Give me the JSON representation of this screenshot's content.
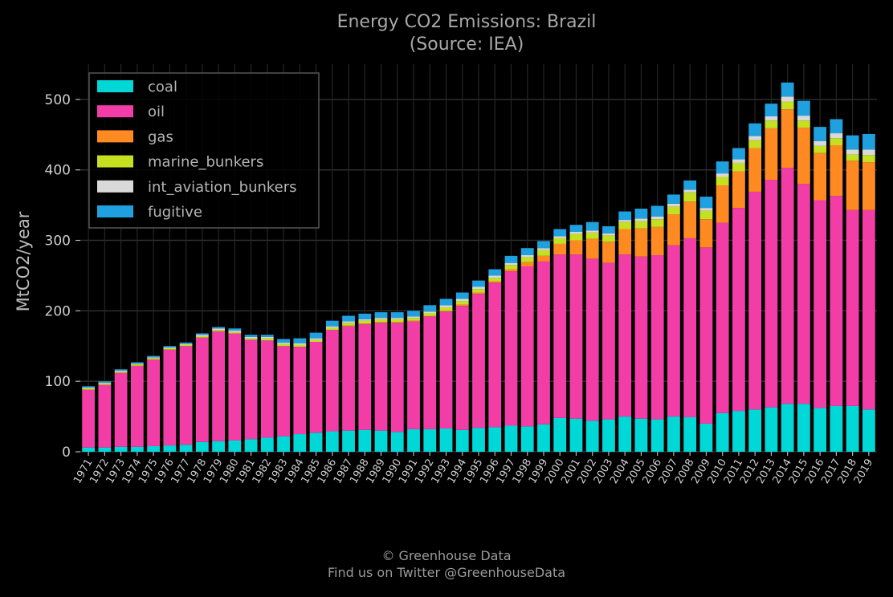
{
  "chart_data": {
    "type": "bar",
    "stacked": true,
    "title": "Energy CO2 Emissions: Brazil",
    "subtitle": "(Source: IEA)",
    "xlabel": "",
    "ylabel": "MtCO2/year",
    "ylim": [
      0,
      550
    ],
    "yticks": [
      0,
      100,
      200,
      300,
      400,
      500
    ],
    "grid": true,
    "legend_position": "top-left",
    "categories": [
      "1971",
      "1972",
      "1973",
      "1974",
      "1975",
      "1976",
      "1977",
      "1978",
      "1979",
      "1980",
      "1981",
      "1982",
      "1983",
      "1984",
      "1985",
      "1986",
      "1987",
      "1988",
      "1989",
      "1990",
      "1991",
      "1992",
      "1993",
      "1994",
      "1995",
      "1996",
      "1997",
      "1998",
      "1999",
      "2000",
      "2001",
      "2002",
      "2003",
      "2004",
      "2005",
      "2006",
      "2007",
      "2008",
      "2009",
      "2010",
      "2011",
      "2012",
      "2013",
      "2014",
      "2015",
      "2016",
      "2017",
      "2018",
      "2019"
    ],
    "series": [
      {
        "name": "coal",
        "color": "#00d7d7",
        "values": [
          6,
          6,
          7,
          7,
          8,
          9,
          10,
          14,
          15,
          16,
          18,
          20,
          22,
          25,
          27,
          29,
          30,
          31,
          30,
          28,
          32,
          32,
          33,
          31,
          34,
          35,
          37,
          36,
          39,
          48,
          47,
          44,
          46,
          50,
          47,
          46,
          50,
          49,
          40,
          55,
          58,
          60,
          63,
          68,
          68,
          62,
          65,
          65,
          60
        ]
      },
      {
        "name": "oil",
        "color": "#f23da7",
        "values": [
          82,
          89,
          105,
          115,
          123,
          136,
          140,
          148,
          156,
          152,
          141,
          138,
          128,
          124,
          129,
          144,
          148,
          150,
          153,
          155,
          153,
          160,
          166,
          176,
          190,
          205,
          219,
          227,
          231,
          232,
          233,
          230,
          222,
          230,
          230,
          233,
          243,
          254,
          250,
          270,
          288,
          309,
          323,
          335,
          312,
          295,
          298,
          278,
          283
        ]
      },
      {
        "name": "gas",
        "color": "#ff8a22",
        "values": [
          0,
          0,
          0,
          0,
          0,
          0,
          0,
          0,
          0,
          0,
          0,
          0,
          0,
          0,
          0,
          0,
          1,
          1,
          1,
          1,
          1,
          1,
          1,
          2,
          2,
          2,
          3,
          6,
          8,
          15,
          20,
          28,
          30,
          36,
          40,
          40,
          44,
          52,
          40,
          53,
          52,
          62,
          73,
          83,
          80,
          67,
          72,
          70,
          68
        ]
      },
      {
        "name": "marine_bunkers",
        "color": "#c4e020",
        "values": [
          2,
          2,
          2,
          2,
          2,
          2,
          2,
          2,
          2,
          2,
          2,
          3,
          3,
          3,
          3,
          3,
          4,
          4,
          4,
          4,
          4,
          4,
          5,
          5,
          5,
          5,
          6,
          7,
          8,
          8,
          9,
          9,
          9,
          10,
          10,
          11,
          11,
          13,
          12,
          12,
          12,
          11,
          11,
          11,
          10,
          10,
          10,
          9,
          10
        ]
      },
      {
        "name": "int_aviation_bunkers",
        "color": "#d9d9d9",
        "values": [
          1,
          1,
          1,
          1,
          1,
          1,
          1,
          2,
          2,
          2,
          2,
          2,
          2,
          2,
          2,
          2,
          2,
          2,
          2,
          2,
          2,
          2,
          3,
          3,
          3,
          3,
          3,
          3,
          3,
          3,
          3,
          3,
          3,
          3,
          4,
          4,
          4,
          4,
          4,
          5,
          5,
          6,
          6,
          7,
          7,
          7,
          7,
          7,
          8
        ]
      },
      {
        "name": "fugitive",
        "color": "#1fa1e0",
        "values": [
          2,
          2,
          2,
          2,
          2,
          2,
          2,
          2,
          2,
          3,
          3,
          3,
          5,
          7,
          8,
          8,
          8,
          8,
          8,
          8,
          8,
          9,
          9,
          9,
          9,
          9,
          10,
          10,
          10,
          10,
          10,
          12,
          10,
          12,
          14,
          15,
          13,
          13,
          16,
          17,
          16,
          18,
          18,
          20,
          21,
          20,
          20,
          20,
          22
        ]
      }
    ]
  },
  "credits": {
    "line1": "© Greenhouse Data",
    "line2": "Find us on Twitter @GreenhouseData"
  }
}
